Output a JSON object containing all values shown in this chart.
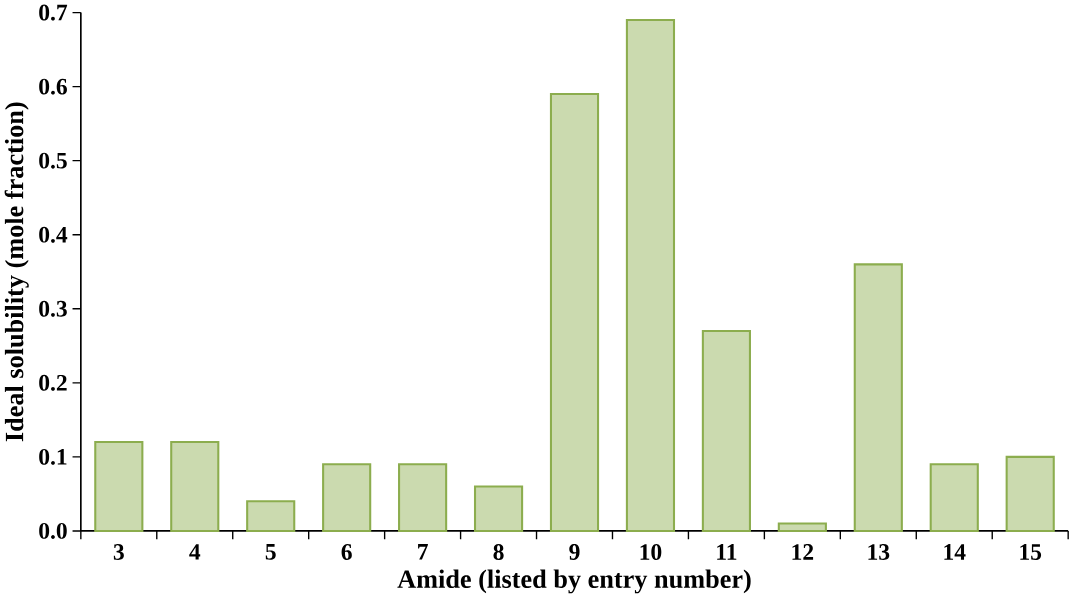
{
  "chart_data": {
    "type": "bar",
    "xlabel": "Amide (listed by entry number)",
    "ylabel": "Ideal solubility  (mole fraction)",
    "categories": [
      "3",
      "4",
      "5",
      "6",
      "7",
      "8",
      "9",
      "10",
      "11",
      "12",
      "13",
      "14",
      "15"
    ],
    "values": [
      0.12,
      0.12,
      0.04,
      0.09,
      0.09,
      0.06,
      0.59,
      0.69,
      0.27,
      0.01,
      0.36,
      0.09,
      0.1
    ],
    "color": "#8cad4e",
    "ylim": [
      0,
      0.7
    ],
    "yticks": [
      {
        "value": 0,
        "label": "0.0"
      },
      0.1,
      0.2,
      0.3,
      0.4,
      0.5,
      0.6,
      0.7
    ],
    "grid": false
  }
}
